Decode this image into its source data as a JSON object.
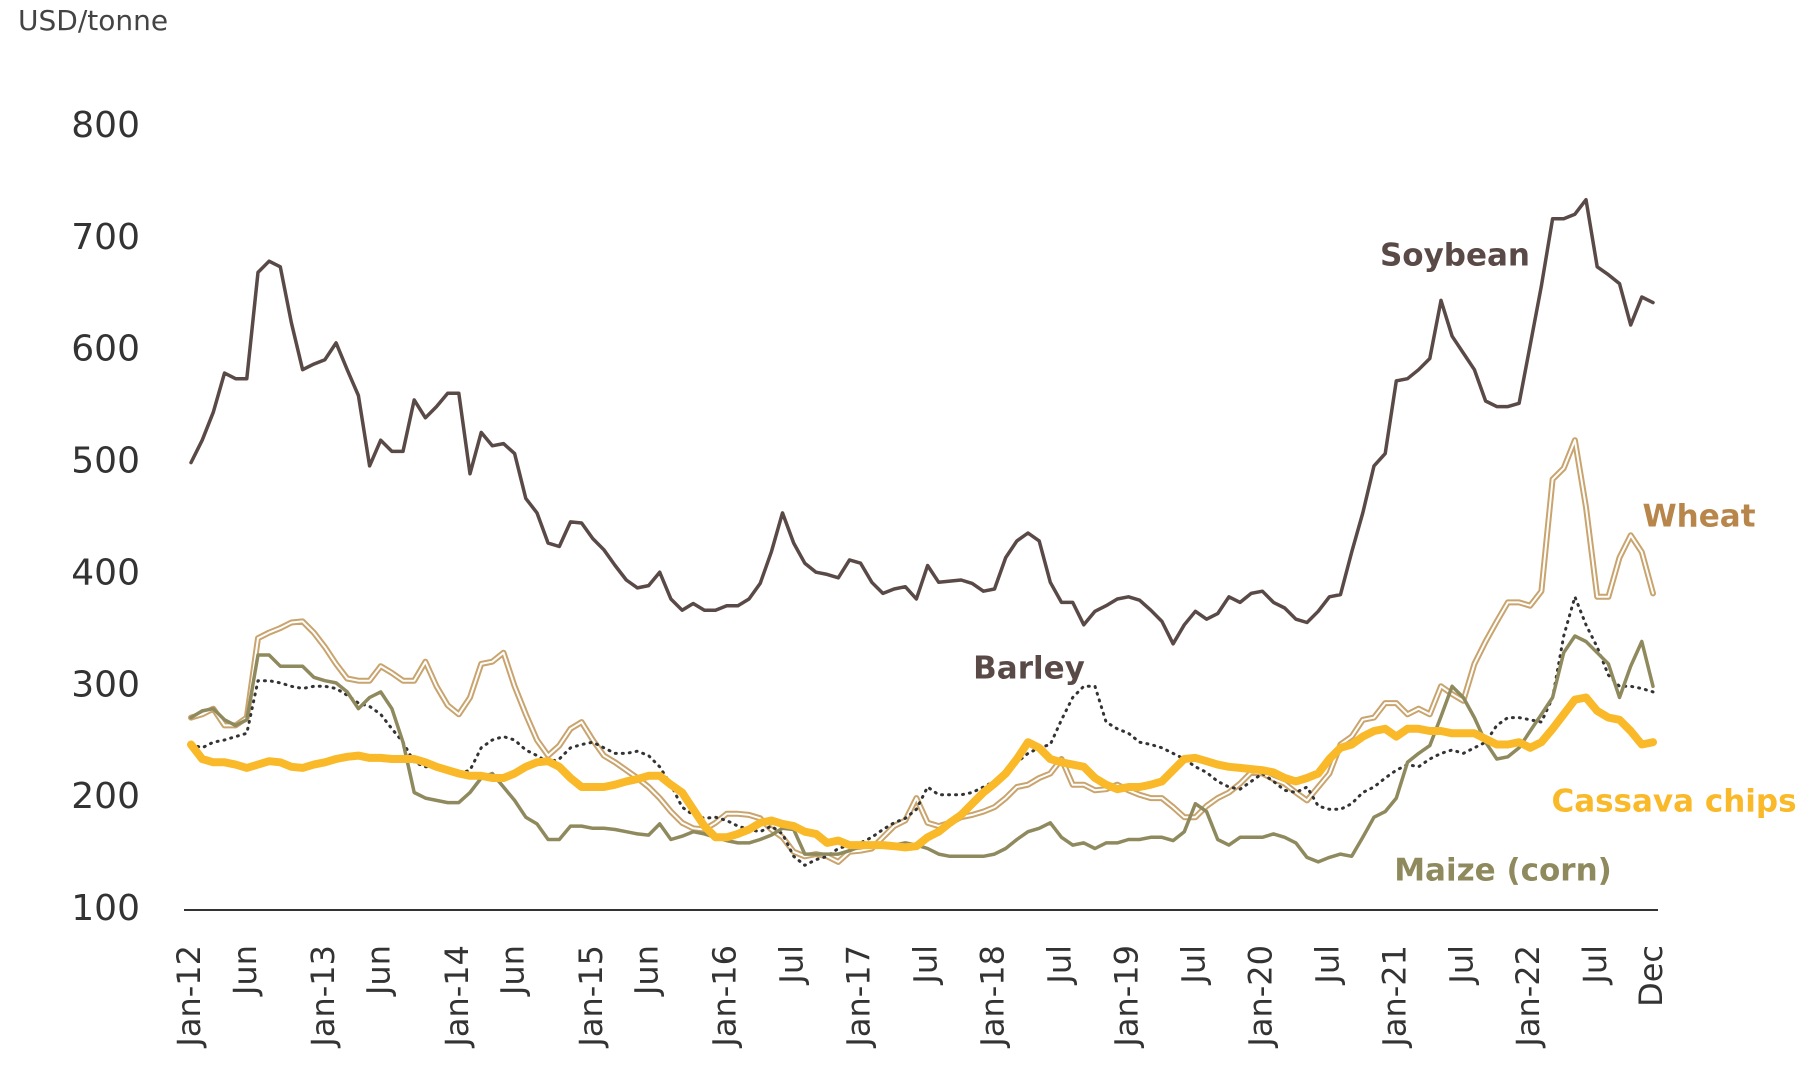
{
  "chart_data": {
    "type": "line",
    "y_label": "USD/tonne",
    "categories": [
      "Jan-12",
      null,
      null,
      null,
      null,
      "Jun",
      null,
      null,
      null,
      null,
      null,
      null,
      "Jan-13",
      null,
      null,
      null,
      null,
      "Jun",
      null,
      null,
      null,
      null,
      null,
      null,
      "Jan-14",
      null,
      null,
      null,
      null,
      "Jun",
      null,
      null,
      null,
      null,
      null,
      null,
      "Jan-15",
      null,
      null,
      null,
      null,
      "Jun",
      null,
      null,
      null,
      null,
      null,
      null,
      "Jan-16",
      null,
      null,
      null,
      null,
      null,
      "Jul",
      null,
      null,
      null,
      null,
      null,
      "Jan-17",
      null,
      null,
      null,
      null,
      null,
      "Jul",
      null,
      null,
      null,
      null,
      null,
      "Jan-18",
      null,
      null,
      null,
      null,
      null,
      "Jul",
      null,
      null,
      null,
      null,
      null,
      "Jan-19",
      null,
      null,
      null,
      null,
      null,
      "Jul",
      null,
      null,
      null,
      null,
      null,
      "Jan-20",
      null,
      null,
      null,
      null,
      null,
      "Jul",
      null,
      null,
      null,
      null,
      null,
      "Jan-21",
      null,
      null,
      null,
      null,
      null,
      "Jul",
      null,
      null,
      null,
      null,
      null,
      "Jan-22",
      null,
      null,
      null,
      null,
      null,
      "Jul",
      null,
      null,
      null,
      null,
      "Dec"
    ],
    "series": [
      {
        "name": "Soybean",
        "color": "#5a4a47",
        "style": "solid",
        "values": [
          500,
          520,
          545,
          580,
          575,
          575,
          670,
          680,
          675,
          625,
          583,
          588,
          592,
          607,
          583,
          560,
          497,
          520,
          510,
          510,
          556,
          540,
          550,
          562,
          562,
          490,
          527,
          515,
          517,
          508,
          468,
          455,
          428,
          425,
          447,
          446,
          432,
          422,
          408,
          395,
          388,
          390,
          402,
          378,
          368,
          374,
          368,
          368,
          372,
          372,
          378,
          392,
          420,
          455,
          428,
          410,
          402,
          400,
          397,
          413,
          410,
          393,
          383,
          387,
          389,
          378,
          408,
          393,
          394,
          395,
          392,
          385,
          387,
          415,
          430,
          437,
          430,
          393,
          375,
          375,
          355,
          367,
          372,
          378,
          380,
          377,
          368,
          358,
          338,
          355,
          367,
          360,
          365,
          380,
          375,
          383,
          385,
          375,
          370,
          360,
          357,
          367,
          380,
          382,
          420,
          455,
          497,
          508,
          573,
          575,
          583,
          593,
          645,
          613,
          598,
          583,
          555,
          550,
          550,
          553,
          605,
          658,
          718,
          718,
          722,
          735,
          675,
          668,
          660,
          623,
          648,
          643
        ]
      },
      {
        "name": "Wheat",
        "color": "#c9a46e",
        "style": "double",
        "values": [
          272,
          275,
          280,
          265,
          265,
          272,
          343,
          348,
          352,
          357,
          358,
          348,
          335,
          320,
          307,
          305,
          305,
          318,
          312,
          305,
          305,
          322,
          300,
          283,
          275,
          290,
          320,
          322,
          330,
          300,
          275,
          252,
          238,
          247,
          262,
          268,
          252,
          238,
          232,
          225,
          218,
          210,
          200,
          188,
          178,
          173,
          172,
          178,
          186,
          186,
          185,
          182,
          172,
          165,
          152,
          148,
          150,
          148,
          143,
          152,
          153,
          155,
          165,
          175,
          180,
          200,
          178,
          175,
          178,
          183,
          185,
          188,
          192,
          200,
          210,
          212,
          218,
          222,
          235,
          212,
          212,
          207,
          208,
          212,
          207,
          203,
          200,
          200,
          192,
          183,
          183,
          193,
          200,
          205,
          213,
          223,
          222,
          217,
          213,
          205,
          198,
          210,
          222,
          248,
          255,
          270,
          272,
          285,
          285,
          275,
          280,
          275,
          300,
          293,
          287,
          320,
          340,
          358,
          375,
          375,
          372,
          385,
          485,
          495,
          520,
          460,
          380,
          380,
          415,
          435,
          420,
          383
        ]
      },
      {
        "name": "Barley",
        "color": "#333333",
        "style": "dotted",
        "values": [
          248,
          245,
          250,
          252,
          255,
          258,
          305,
          305,
          303,
          300,
          298,
          300,
          300,
          298,
          292,
          285,
          282,
          275,
          262,
          250,
          232,
          228,
          228,
          225,
          222,
          225,
          245,
          252,
          255,
          252,
          243,
          238,
          232,
          235,
          245,
          248,
          250,
          245,
          240,
          240,
          242,
          238,
          228,
          212,
          192,
          185,
          182,
          183,
          180,
          175,
          172,
          170,
          175,
          168,
          148,
          140,
          145,
          148,
          155,
          158,
          160,
          165,
          172,
          178,
          182,
          190,
          210,
          203,
          203,
          203,
          205,
          210,
          215,
          225,
          232,
          240,
          245,
          248,
          270,
          290,
          300,
          300,
          268,
          262,
          258,
          250,
          248,
          245,
          240,
          235,
          228,
          223,
          215,
          210,
          208,
          215,
          222,
          215,
          207,
          205,
          210,
          193,
          190,
          190,
          195,
          205,
          210,
          218,
          225,
          230,
          228,
          235,
          240,
          243,
          240,
          245,
          250,
          265,
          272,
          272,
          270,
          268,
          290,
          345,
          380,
          355,
          335,
          310,
          300,
          300,
          298,
          295
        ]
      },
      {
        "name": "Cassava chips",
        "color": "#f9b928",
        "style": "thick",
        "values": [
          248,
          235,
          232,
          232,
          230,
          227,
          230,
          233,
          232,
          228,
          227,
          230,
          232,
          235,
          237,
          238,
          236,
          236,
          235,
          235,
          235,
          232,
          228,
          225,
          222,
          220,
          220,
          218,
          218,
          222,
          228,
          232,
          233,
          228,
          218,
          210,
          210,
          210,
          212,
          215,
          217,
          220,
          220,
          212,
          205,
          190,
          175,
          165,
          165,
          168,
          172,
          178,
          180,
          177,
          175,
          170,
          168,
          160,
          162,
          158,
          158,
          158,
          158,
          157,
          156,
          157,
          165,
          170,
          178,
          185,
          195,
          205,
          213,
          222,
          235,
          250,
          245,
          235,
          232,
          230,
          228,
          218,
          212,
          208,
          210,
          210,
          212,
          215,
          225,
          235,
          236,
          233,
          230,
          228,
          227,
          226,
          225,
          223,
          218,
          215,
          218,
          222,
          235,
          245,
          248,
          255,
          260,
          262,
          255,
          262,
          262,
          260,
          260,
          258,
          258,
          258,
          253,
          248,
          248,
          250,
          245,
          250,
          262,
          275,
          288,
          290,
          278,
          272,
          270,
          260,
          248,
          250
        ]
      },
      {
        "name": "Maize (corn)",
        "color": "#8f8a5e",
        "style": "solid",
        "values": [
          272,
          278,
          280,
          270,
          265,
          270,
          328,
          328,
          318,
          318,
          318,
          308,
          305,
          303,
          295,
          280,
          290,
          295,
          280,
          250,
          205,
          200,
          198,
          196,
          196,
          205,
          218,
          222,
          210,
          198,
          183,
          177,
          163,
          163,
          175,
          175,
          173,
          173,
          172,
          170,
          168,
          167,
          177,
          163,
          166,
          170,
          168,
          165,
          162,
          160,
          160,
          163,
          167,
          173,
          172,
          150,
          150,
          150,
          150,
          153,
          157,
          157,
          158,
          158,
          160,
          158,
          155,
          150,
          148,
          148,
          148,
          148,
          150,
          155,
          163,
          170,
          173,
          178,
          165,
          158,
          160,
          155,
          160,
          160,
          163,
          163,
          165,
          165,
          162,
          170,
          195,
          188,
          163,
          158,
          165,
          165,
          165,
          168,
          165,
          160,
          147,
          143,
          147,
          150,
          148,
          165,
          183,
          188,
          200,
          232,
          240,
          247,
          273,
          300,
          290,
          272,
          250,
          235,
          237,
          245,
          260,
          275,
          290,
          330,
          345,
          340,
          330,
          320,
          290,
          318,
          340,
          300
        ]
      }
    ],
    "ylim": [
      100,
      800
    ],
    "yticks": [
      100,
      200,
      300,
      400,
      500,
      600,
      700,
      800
    ],
    "grid": false
  }
}
